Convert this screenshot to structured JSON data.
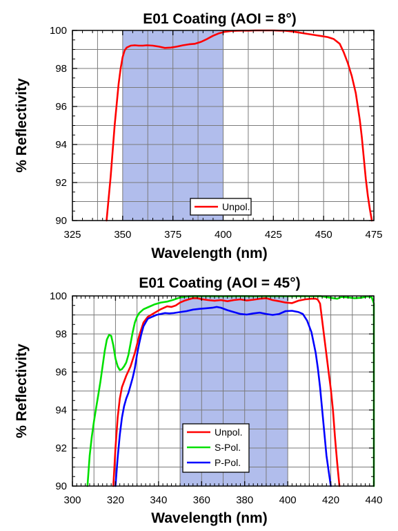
{
  "chart_data": [
    {
      "type": "line",
      "title": "E01 Coating (AOI = 8°)",
      "xlabel": "Wavelength (nm)",
      "ylabel": "% Reflectivity",
      "xlim": [
        325,
        475
      ],
      "ylim": [
        90,
        100
      ],
      "xticks": [
        325,
        350,
        375,
        400,
        425,
        450,
        475
      ],
      "yticks": [
        90,
        92,
        94,
        96,
        98,
        100
      ],
      "grid": true,
      "legend_position": "bottom-center",
      "highlight_band": {
        "x": [
          350,
          400
        ],
        "color": "#a8b6ea"
      },
      "series": [
        {
          "name": "Unpol.",
          "color": "#ff0000",
          "x": [
            342,
            344,
            346,
            348,
            349,
            350,
            351,
            352,
            354,
            356,
            358,
            360,
            362,
            365,
            368,
            371,
            374,
            377,
            380,
            383,
            386,
            389,
            392,
            395,
            398,
            401,
            404,
            407,
            410,
            413,
            416,
            419,
            422,
            425,
            428,
            431,
            434,
            437,
            440,
            443,
            446,
            449,
            452,
            455,
            458,
            460,
            462,
            464,
            466,
            468,
            469,
            470,
            471,
            472,
            473,
            474
          ],
          "y": [
            90.0,
            92.3,
            95.0,
            97.2,
            98.0,
            98.6,
            98.95,
            99.1,
            99.2,
            99.22,
            99.2,
            99.2,
            99.22,
            99.2,
            99.15,
            99.08,
            99.1,
            99.15,
            99.22,
            99.27,
            99.3,
            99.4,
            99.55,
            99.72,
            99.85,
            99.93,
            99.97,
            99.98,
            99.99,
            99.99,
            100.0,
            100.0,
            100.0,
            100.0,
            99.99,
            99.98,
            99.95,
            99.9,
            99.85,
            99.8,
            99.75,
            99.7,
            99.65,
            99.55,
            99.3,
            98.85,
            98.3,
            97.6,
            96.7,
            95.3,
            94.4,
            93.3,
            92.2,
            91.3,
            90.6,
            90.0
          ]
        }
      ]
    },
    {
      "type": "line",
      "title": "E01 Coating (AOI = 45°)",
      "xlabel": "Wavelength (nm)",
      "ylabel": "% Reflectivity",
      "xlim": [
        300,
        440
      ],
      "ylim": [
        90,
        100
      ],
      "xticks": [
        300,
        320,
        340,
        360,
        380,
        400,
        420,
        440
      ],
      "yticks": [
        90,
        92,
        94,
        96,
        98,
        100
      ],
      "grid": true,
      "legend_position": "bottom-center",
      "highlight_band": {
        "x": [
          350,
          400
        ],
        "color": "#a8b6ea"
      },
      "series": [
        {
          "name": "Unpol.",
          "color": "#ff0000",
          "x": [
            319,
            320,
            321,
            322,
            323,
            325,
            327,
            329,
            331,
            333,
            335,
            338,
            341,
            344,
            346,
            348,
            350,
            352,
            354,
            356,
            358,
            360,
            363,
            366,
            369,
            372,
            375,
            378,
            381,
            384,
            387,
            390,
            393,
            396,
            399,
            402,
            405,
            408,
            411,
            413,
            414,
            415,
            416,
            417,
            418,
            419,
            420,
            421,
            422,
            423,
            424
          ],
          "y": [
            90.0,
            92.0,
            93.6,
            94.6,
            95.2,
            95.8,
            96.3,
            97.0,
            97.9,
            98.6,
            98.9,
            99.1,
            99.3,
            99.45,
            99.42,
            99.5,
            99.65,
            99.75,
            99.82,
            99.88,
            99.88,
            99.83,
            99.78,
            99.75,
            99.78,
            99.72,
            99.78,
            99.82,
            99.76,
            99.8,
            99.85,
            99.88,
            99.78,
            99.72,
            99.65,
            99.62,
            99.75,
            99.82,
            99.85,
            99.85,
            99.8,
            99.6,
            98.7,
            97.8,
            96.9,
            96.0,
            95.1,
            94.0,
            92.5,
            91.2,
            90.0
          ]
        },
        {
          "name": "S-Pol.",
          "color": "#00e000",
          "x": [
            307,
            308,
            309,
            310,
            311,
            312,
            313,
            314,
            315,
            316,
            317,
            318,
            319,
            320,
            321,
            322,
            323,
            324,
            325,
            326,
            327,
            328,
            329,
            330,
            331,
            333,
            335,
            338,
            341,
            344,
            347,
            350,
            353,
            356,
            360,
            365,
            370,
            375,
            380,
            385,
            390,
            395,
            400,
            405,
            410,
            415,
            420,
            423,
            425,
            428,
            431,
            434,
            437,
            439,
            440,
            441,
            442,
            443
          ],
          "y": [
            90.0,
            91.6,
            92.6,
            93.4,
            94.1,
            94.8,
            95.5,
            96.3,
            97.1,
            97.7,
            97.95,
            97.9,
            97.4,
            96.7,
            96.3,
            96.1,
            96.15,
            96.3,
            96.5,
            96.9,
            97.5,
            98.1,
            98.6,
            98.9,
            99.1,
            99.3,
            99.4,
            99.55,
            99.65,
            99.7,
            99.8,
            99.92,
            99.97,
            99.99,
            99.99,
            99.99,
            99.98,
            99.99,
            99.99,
            99.98,
            99.99,
            99.99,
            99.98,
            99.99,
            99.98,
            99.99,
            99.9,
            99.85,
            99.95,
            99.92,
            99.88,
            99.9,
            99.97,
            99.93,
            99.6,
            97.0,
            93.5,
            90.0
          ]
        },
        {
          "name": "P-Pol.",
          "color": "#0000ff",
          "x": [
            320,
            321,
            322,
            323,
            324,
            325,
            326,
            327,
            328,
            329,
            330,
            331,
            332,
            333,
            334,
            335,
            337,
            339,
            341,
            343,
            345,
            347,
            350,
            353,
            356,
            359,
            362,
            365,
            367,
            369,
            372,
            375,
            378,
            381,
            384,
            387,
            390,
            393,
            396,
            399,
            402,
            405,
            407,
            409,
            411,
            413,
            414,
            415,
            416,
            417,
            418,
            419,
            420
          ],
          "y": [
            90.0,
            91.5,
            92.7,
            93.6,
            94.2,
            94.6,
            94.9,
            95.3,
            95.7,
            96.2,
            96.9,
            97.5,
            98.0,
            98.4,
            98.6,
            98.8,
            98.9,
            99.0,
            99.05,
            99.1,
            99.08,
            99.1,
            99.15,
            99.2,
            99.28,
            99.32,
            99.35,
            99.38,
            99.42,
            99.38,
            99.25,
            99.15,
            99.05,
            99.02,
            99.08,
            99.12,
            99.05,
            99.0,
            99.05,
            99.2,
            99.22,
            99.15,
            99.05,
            98.7,
            98.1,
            97.0,
            96.2,
            95.2,
            94.0,
            92.8,
            91.6,
            90.8,
            90.0
          ]
        }
      ]
    }
  ]
}
